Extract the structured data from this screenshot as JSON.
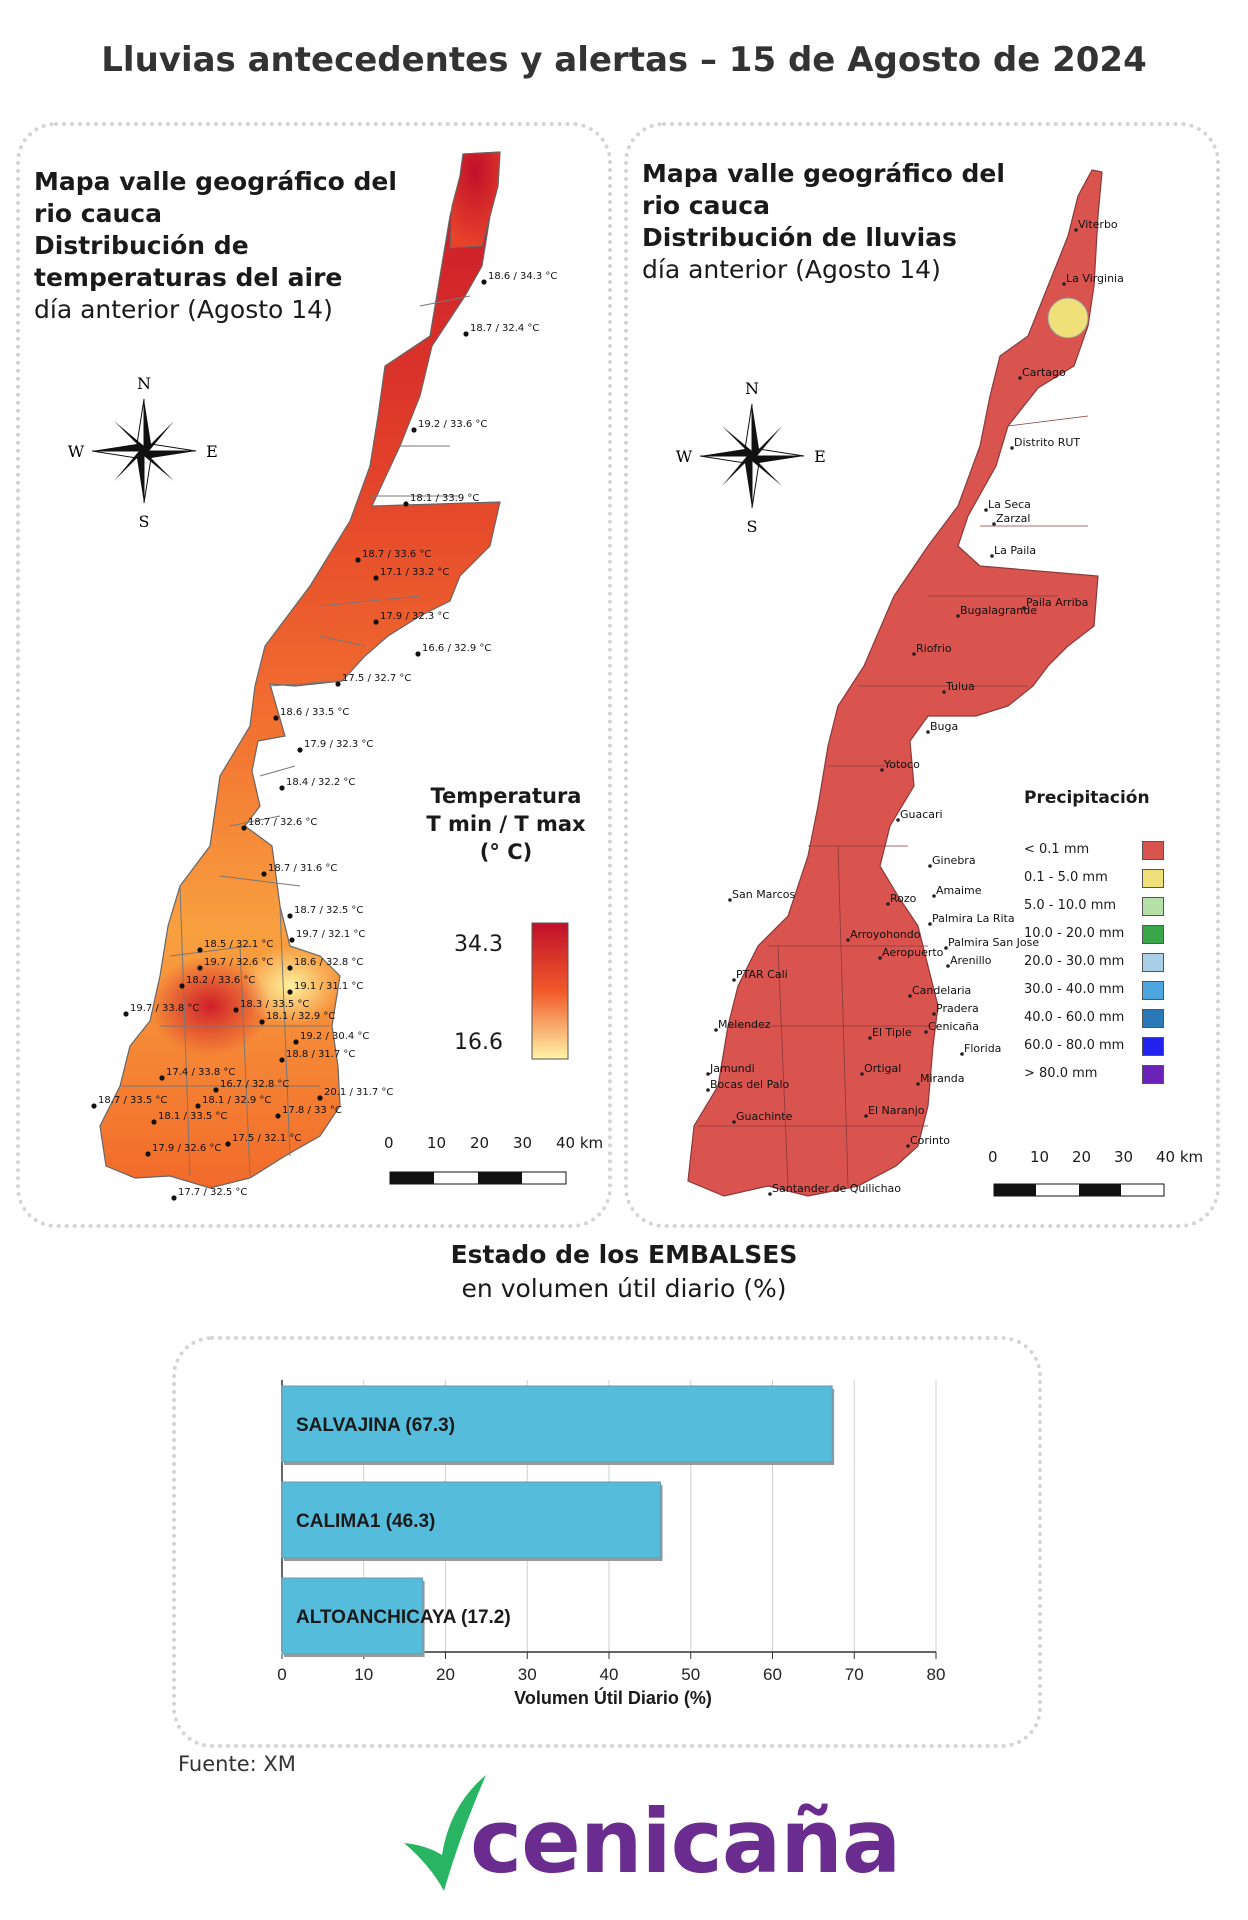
{
  "title": "Lluvias antecedentes y alertas – 15 de Agosto de 2024",
  "temp_panel": {
    "title_line1": "Mapa valle geográfico del",
    "title_line2": "rio cauca",
    "title_bold1": "Distribución de",
    "title_bold2": "temperaturas del aire",
    "title_sub": "día anterior (Agosto 14)",
    "legend_title1": "Temperatura",
    "legend_title2": "T min / T max",
    "legend_title3": "(° C)",
    "legend_max": "34.3",
    "legend_min": "16.6",
    "colors": {
      "high": "#c0102a",
      "mid": "#f0592a",
      "low": "#fff5a8"
    },
    "stations": [
      "18.6 / 34.3 °C",
      "18.7 / 32.4 °C",
      "19.2 / 33.6 °C",
      "18.1 / 33.9 °C",
      "18.7 / 33.6 °C",
      "17.1 / 33.2 °C",
      "17.9 / 32.3 °C",
      "16.6 / 32.9 °C",
      "17.5 / 32.7 °C",
      "18.6 / 33.5 °C",
      "17.9 / 32.3 °C",
      "18.4 / 32.2 °C",
      "18.7 / 32.6 °C",
      "18.7 / 31.6 °C",
      "18.7 / 32.5 °C",
      "18.5 / 32.1 °C",
      "19.7 / 32.1 °C",
      "19.7 / 32.6 °C",
      "18.6 / 32.8 °C",
      "18.2 / 33.6 °C",
      "19.1 / 31.1 °C",
      "19.7 / 33.8 °C",
      "18.3 / 33.5 °C",
      "18.1 / 32.9 °C",
      "19.2 / 30.4 °C",
      "18.8 / 31.7 °C",
      "17.4 / 33.8 °C",
      "16.7 / 32.8 °C",
      "20.1 / 31.7 °C",
      "18.7 / 33.5 °C",
      "18.1 / 32.9 °C",
      "17.8 / 33 °C",
      "18.1 / 33.5 °C",
      "17.5 / 32.1 °C",
      "17.9 / 32.6 °C",
      "17.7 / 32.5 °C"
    ],
    "scale": [
      "0",
      "10",
      "20",
      "30",
      "40 km"
    ]
  },
  "rain_panel": {
    "title_line1": "Mapa valle geográfico del",
    "title_line2": "rio cauca",
    "title_bold": "Distribución de lluvias",
    "title_sub": "día anterior (Agosto 14)",
    "legend_title": "Precipitación",
    "map_color": "#d9534f",
    "legend": [
      {
        "label": "< 0.1 mm",
        "color": "#d9534f"
      },
      {
        "label": "0.1 - 5.0 mm",
        "color": "#f0e07a"
      },
      {
        "label": "5.0 - 10.0 mm",
        "color": "#b5e0a8"
      },
      {
        "label": "10.0 - 20.0 mm",
        "color": "#3aa64a"
      },
      {
        "label": "20.0 - 30.0 mm",
        "color": "#a8cfe6"
      },
      {
        "label": "30.0 - 40.0 mm",
        "color": "#4ea6e0"
      },
      {
        "label": "40.0 - 60.0 mm",
        "color": "#2a78b8"
      },
      {
        "label": "60.0 - 80.0 mm",
        "color": "#2222ee"
      },
      {
        "label": "> 80.0 mm",
        "color": "#6a22b8"
      }
    ],
    "cities": [
      "Viterbo",
      "La Virginia",
      "Cartago",
      "Distrito RUT",
      "La Seca",
      "Zarzal",
      "La Paila",
      "Paila Arriba",
      "Bugalagrande",
      "Riofrio",
      "Tulua",
      "Buga",
      "Yotoco",
      "Guacari",
      "Ginebra",
      "Amaime",
      "San Marcos",
      "Rozo",
      "Palmira La Rita",
      "Arroyohondo",
      "Palmira San Jose",
      "Aeropuerto",
      "Arenillo",
      "PTAR Cali",
      "Candelaria",
      "Pradera",
      "Melendez",
      "El Tiple",
      "Cenicaña",
      "Florida",
      "Jamundi",
      "Ortigal",
      "Bocas del Palo",
      "Miranda",
      "Guachinte",
      "El Naranjo",
      "Corinto",
      "Santander de Quilichao"
    ],
    "scale": [
      "0",
      "10",
      "20",
      "30",
      "40 km"
    ]
  },
  "compass": {
    "n": "N",
    "s": "S",
    "e": "E",
    "w": "W"
  },
  "reservoirs": {
    "heading_bold": "Estado de los EMBALSES",
    "heading_sub": "en volumen útil diario (%)",
    "source": "Fuente: XM",
    "brand": "cenicaña"
  },
  "chart_data": {
    "type": "bar",
    "orientation": "horizontal",
    "categories": [
      "SALVAJINA",
      "CALIMA1",
      "ALTOANCHICAYA"
    ],
    "bar_labels": [
      "SALVAJINA (67.3)",
      "CALIMA1 (46.3)",
      "ALTOANCHICAYA (17.2)"
    ],
    "values": [
      67.3,
      46.3,
      17.2
    ],
    "xlabel": "Volumen Útil Diario (%)",
    "xlim": [
      0,
      80
    ],
    "xticks": [
      "0",
      "10",
      "20",
      "30",
      "40",
      "50",
      "60",
      "70",
      "80"
    ],
    "grid": true,
    "bar_color": "#56bcdc"
  }
}
